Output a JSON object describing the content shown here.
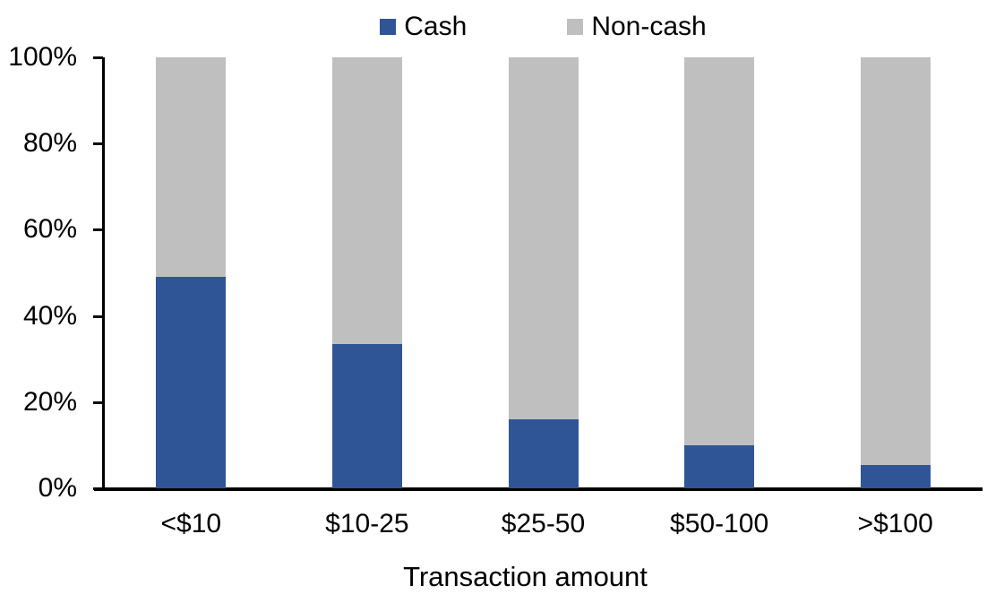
{
  "chart_data": {
    "type": "bar",
    "stacked": true,
    "title": "",
    "xlabel": "Transaction amount",
    "ylabel": "",
    "ylim": [
      0,
      100
    ],
    "yticks": [
      {
        "value": 0,
        "label": "0%"
      },
      {
        "value": 20,
        "label": "20%"
      },
      {
        "value": 40,
        "label": "40%"
      },
      {
        "value": 60,
        "label": "60%"
      },
      {
        "value": 80,
        "label": "80%"
      },
      {
        "value": 100,
        "label": "100%"
      }
    ],
    "categories": [
      "<$10",
      "$10-25",
      "$25-50",
      "$50-100",
      ">$100"
    ],
    "series": [
      {
        "name": "Cash",
        "color": "#2F5596",
        "values": [
          49,
          33.5,
          16,
          10,
          5.5
        ]
      },
      {
        "name": "Non-cash",
        "color": "#BFBFBF",
        "values": [
          51,
          66.5,
          84,
          90,
          94.5
        ]
      }
    ],
    "legend_position": "top",
    "grid": false
  }
}
